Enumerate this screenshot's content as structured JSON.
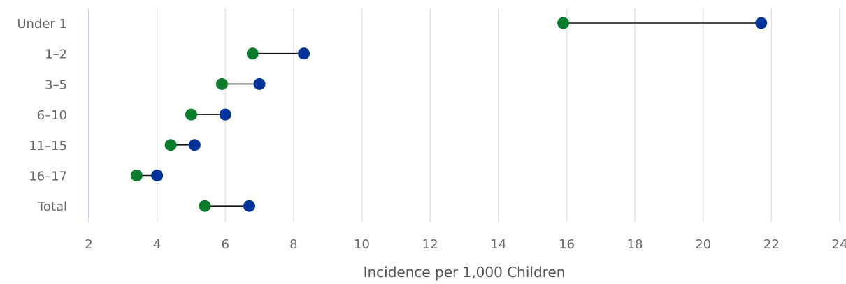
{
  "chart_data": {
    "type": "dumbbell",
    "title": "",
    "xlabel": "Incidence per 1,000 Children",
    "ylabel": "",
    "xlim": [
      2,
      24
    ],
    "xticks": [
      "2",
      "4",
      "6",
      "8",
      "10",
      "12",
      "14",
      "16",
      "18",
      "20",
      "22",
      "24"
    ],
    "grid": true,
    "categories": [
      "Under 1",
      "1–2",
      "3–5",
      "6–10",
      "11–15",
      "16–17",
      "Total"
    ],
    "series": [
      {
        "values": [
          15.9,
          6.8,
          5.9,
          5.0,
          4.4,
          3.4,
          5.4
        ],
        "color": "#0a7d2c"
      },
      {
        "values": [
          21.7,
          8.3,
          7.0,
          6.0,
          5.1,
          4.0,
          6.7
        ],
        "color": "#003399"
      }
    ]
  }
}
